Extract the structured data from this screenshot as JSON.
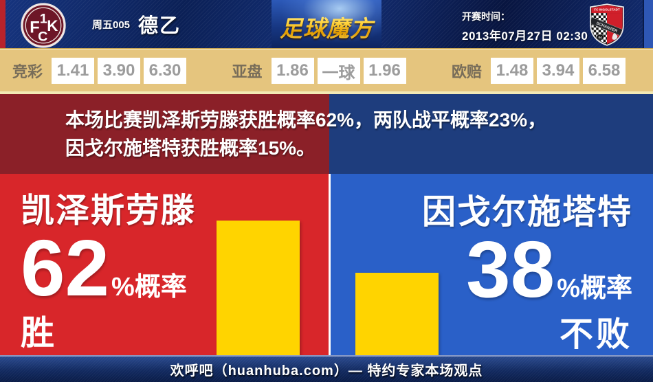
{
  "header": {
    "match_no": "周五005",
    "league": "德乙",
    "brand": "足球魔方",
    "kickoff_label": "开赛时间：",
    "kickoff_time": "2013年07月27日 02:30",
    "home_crest": {
      "letters": "F1CK"
    },
    "away_crest": {
      "top": "FC INGOLSTADT",
      "band": "SCHANZER",
      "num": "04"
    }
  },
  "odds": {
    "groups": [
      {
        "label": "竞彩",
        "values": [
          "1.41",
          "3.90",
          "6.30"
        ]
      },
      {
        "label": "亚盘",
        "values": [
          "1.86",
          "一球",
          "1.96"
        ]
      },
      {
        "label": "欧赔",
        "values": [
          "1.48",
          "3.94",
          "6.58"
        ]
      }
    ]
  },
  "summary": {
    "line1": "本场比赛凯泽斯劳滕获胜概率62%，两队战平概率23%，",
    "line2": "因戈尔施塔特获胜概率15%。"
  },
  "home": {
    "name": "凯泽斯劳滕",
    "percent": "62",
    "suffix": "%概率",
    "outcome": "胜"
  },
  "away": {
    "name": "因戈尔施塔特",
    "percent": "38",
    "suffix": "%概率",
    "outcome": "不败"
  },
  "footer": {
    "text": "欢呼吧（huanhuba.com）— 特约专家本场观点"
  },
  "colors": {
    "accent_gold": "#ffd400",
    "home_red": "#d8262a",
    "home_dark_red": "#8b2028",
    "away_blue": "#2a60c8",
    "away_dark_blue": "#1e3d7d",
    "odds_bg": "#e5c57e",
    "brand_gold": "#ffc81e"
  },
  "chart_data": {
    "type": "bar",
    "title": "",
    "categories": [
      "凯泽斯劳滕 胜",
      "因戈尔施塔特 不败"
    ],
    "values": [
      62,
      38
    ],
    "unit": "%",
    "ylim": [
      0,
      100
    ],
    "bar_color": "#ffd400",
    "annotations": [
      "62%概率 胜",
      "38%概率 不败"
    ],
    "match_probabilities": {
      "home_win": 62,
      "draw": 23,
      "away_win": 15
    }
  }
}
